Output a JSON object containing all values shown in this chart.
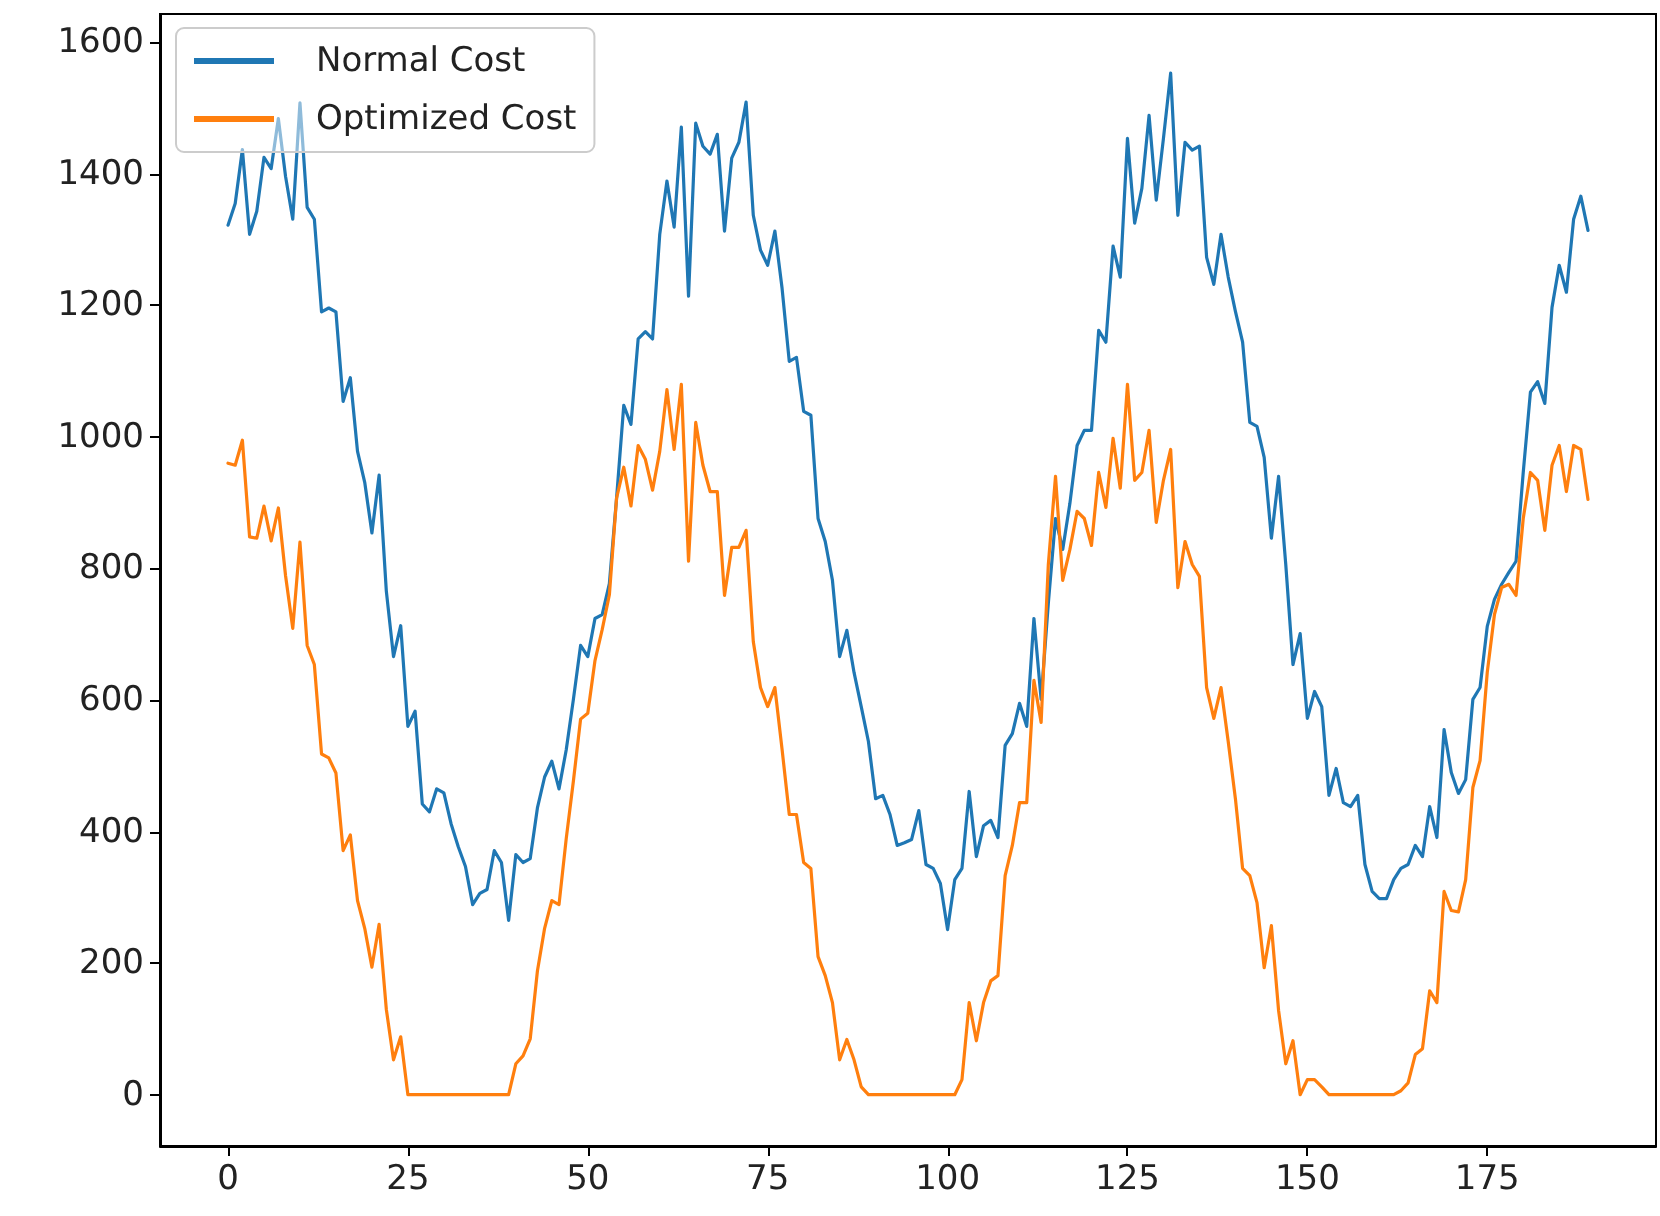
{
  "chart_data": {
    "type": "line",
    "x": [
      0,
      1,
      2,
      3,
      4,
      5,
      6,
      7,
      8,
      9,
      10,
      11,
      12,
      13,
      14,
      15,
      16,
      17,
      18,
      19,
      20,
      21,
      22,
      23,
      24,
      25,
      26,
      27,
      28,
      29,
      30,
      31,
      32,
      33,
      34,
      35,
      36,
      37,
      38,
      39,
      40,
      41,
      42,
      43,
      44,
      45,
      46,
      47,
      48,
      49,
      50,
      51,
      52,
      53,
      54,
      55,
      56,
      57,
      58,
      59,
      60,
      61,
      62,
      63,
      64,
      65,
      66,
      67,
      68,
      69,
      70,
      71,
      72,
      73,
      74,
      75,
      76,
      77,
      78,
      79,
      80,
      81,
      82,
      83,
      84,
      85,
      86,
      87,
      88,
      89,
      90,
      91,
      92,
      93,
      94,
      95,
      96,
      97,
      98,
      99,
      100,
      101,
      102,
      103,
      104,
      105,
      106,
      107,
      108,
      109,
      110,
      111,
      112,
      113,
      114,
      115,
      116,
      117,
      118,
      119,
      120,
      121,
      122,
      123,
      124,
      125,
      126,
      127,
      128,
      129,
      130,
      131,
      132,
      133,
      134,
      135,
      136,
      137,
      138,
      139,
      140,
      141,
      142,
      143,
      144,
      145,
      146,
      147,
      148,
      149,
      150,
      151,
      152,
      153,
      154,
      155,
      156,
      157,
      158,
      159,
      160,
      161,
      162,
      163,
      164,
      165,
      166,
      167,
      168,
      169,
      170,
      171,
      172,
      173,
      174,
      175,
      176,
      177,
      178,
      179,
      180,
      181,
      182,
      183,
      184,
      185,
      186,
      187,
      188,
      189
    ],
    "series": [
      {
        "name": "Normal Cost",
        "color": "#1f77b4",
        "values": [
          1322,
          1355,
          1437,
          1308,
          1343,
          1425,
          1408,
          1484,
          1396,
          1331,
          1508,
          1349,
          1331,
          1190,
          1196,
          1190,
          1054,
          1090,
          978,
          931,
          854,
          942,
          766,
          666,
          713,
          560,
          583,
          442,
          430,
          465,
          459,
          412,
          377,
          347,
          289,
          306,
          312,
          371,
          353,
          265,
          365,
          353,
          359,
          436,
          483,
          507,
          465,
          524,
          601,
          683,
          666,
          724,
          730,
          777,
          907,
          1048,
          1019,
          1149,
          1160,
          1149,
          1308,
          1389,
          1319,
          1471,
          1214,
          1477,
          1442,
          1430,
          1460,
          1313,
          1424,
          1448,
          1509,
          1337,
          1284,
          1261,
          1313,
          1226,
          1115,
          1121,
          1039,
          1033,
          876,
          841,
          782,
          666,
          706,
          642,
          590,
          537,
          450,
          455,
          426,
          379,
          383,
          388,
          432,
          350,
          344,
          321,
          251,
          327,
          344,
          461,
          362,
          409,
          417,
          391,
          531,
          549,
          595,
          560,
          724,
          601,
          747,
          876,
          829,
          899,
          987,
          1010,
          1010,
          1162,
          1144,
          1290,
          1243,
          1454,
          1325,
          1378,
          1489,
          1360,
          1454,
          1553,
          1337,
          1448,
          1436,
          1442,
          1273,
          1232,
          1308,
          1243,
          1191,
          1144,
          1022,
          1016,
          969,
          846,
          940,
          806,
          654,
          701,
          572,
          613,
          590,
          455,
          496,
          444,
          438,
          455,
          350,
          309,
          298,
          298,
          327,
          344,
          350,
          379,
          362,
          438,
          391,
          555,
          490,
          458,
          479,
          601,
          619,
          712,
          753,
          776,
          794,
          811,
          946,
          1068,
          1084,
          1051,
          1197,
          1261,
          1220,
          1331,
          1366,
          1314
        ]
      },
      {
        "name": "Optimized Cost",
        "color": "#ff7f0e",
        "values": [
          960,
          957,
          995,
          848,
          846,
          895,
          842,
          892,
          789,
          709,
          840,
          683,
          654,
          518,
          512,
          489,
          371,
          395,
          295,
          253,
          194,
          259,
          130,
          53,
          88,
          0,
          0,
          0,
          0,
          0,
          0,
          0,
          0,
          0,
          0,
          0,
          0,
          0,
          0,
          0,
          47,
          59,
          85,
          188,
          253,
          295,
          289,
          389,
          477,
          571,
          580,
          660,
          707,
          760,
          907,
          954,
          895,
          987,
          966,
          919,
          978,
          1072,
          981,
          1080,
          811,
          1022,
          957,
          917,
          917,
          759,
          832,
          832,
          858,
          689,
          619,
          590,
          619,
          525,
          426,
          426,
          353,
          344,
          210,
          181,
          140,
          53,
          84,
          53,
          12,
          0,
          0,
          0,
          0,
          0,
          0,
          0,
          0,
          0,
          0,
          0,
          0,
          0,
          23,
          140,
          82,
          140,
          173,
          181,
          333,
          379,
          444,
          444,
          630,
          566,
          806,
          940,
          782,
          829,
          887,
          876,
          835,
          946,
          893,
          998,
          922,
          1080,
          934,
          946,
          1010,
          870,
          934,
          981,
          771,
          841,
          806,
          788,
          619,
          572,
          619,
          537,
          450,
          344,
          333,
          292,
          193,
          257,
          128,
          47,
          82,
          0,
          23,
          23,
          12,
          0,
          0,
          0,
          0,
          0,
          0,
          0,
          0,
          0,
          0,
          6,
          18,
          61,
          70,
          158,
          140,
          309,
          280,
          278,
          327,
          467,
          508,
          642,
          730,
          771,
          776,
          759,
          876,
          946,
          934,
          858,
          957,
          987,
          917,
          987,
          981,
          905
        ]
      }
    ],
    "xlim": [
      -9.45,
      198.45
    ],
    "xticks": [
      0,
      25,
      50,
      75,
      100,
      125,
      150,
      175
    ],
    "ylim": [
      -78,
      1643
    ],
    "yticks": [
      0,
      200,
      400,
      600,
      800,
      1000,
      1200,
      1400,
      1600
    ],
    "legend": "top left",
    "grid": false,
    "marker": "none",
    "line_style": "solid"
  }
}
